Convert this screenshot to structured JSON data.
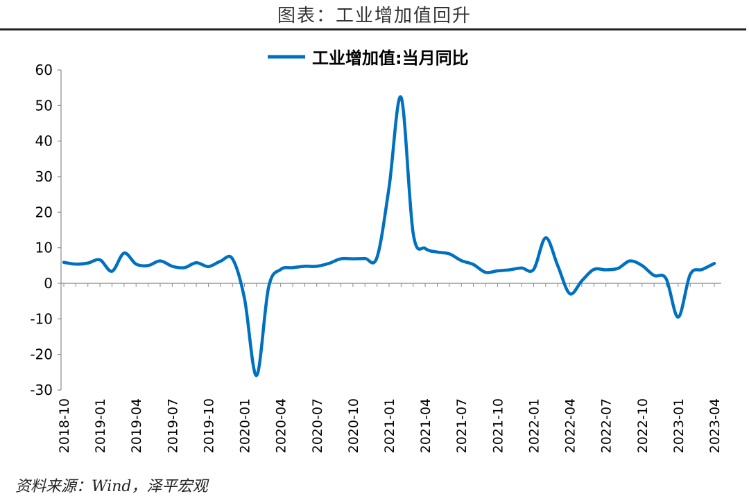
{
  "header": {
    "title": "图表：工业增加值回升"
  },
  "footer": {
    "source": "资料来源：Wind，泽平宏观"
  },
  "chart_data": {
    "type": "line",
    "title": "",
    "xlabel": "",
    "ylabel": "",
    "ylim": [
      -30,
      60
    ],
    "yticks": [
      -30,
      -20,
      -10,
      0,
      10,
      20,
      30,
      40,
      50,
      60
    ],
    "legend_position": "top-center",
    "grid": false,
    "line_color": "#0070C0",
    "x": [
      "2018-10",
      "2018-11",
      "2018-12",
      "2019-01",
      "2019-02",
      "2019-03",
      "2019-04",
      "2019-05",
      "2019-06",
      "2019-07",
      "2019-08",
      "2019-09",
      "2019-10",
      "2019-11",
      "2019-12",
      "2020-01",
      "2020-02",
      "2020-03",
      "2020-04",
      "2020-05",
      "2020-06",
      "2020-07",
      "2020-08",
      "2020-09",
      "2020-10",
      "2020-11",
      "2020-12",
      "2021-01",
      "2021-02",
      "2021-03",
      "2021-04",
      "2021-05",
      "2021-06",
      "2021-07",
      "2021-08",
      "2021-09",
      "2021-10",
      "2021-11",
      "2021-12",
      "2022-01",
      "2022-02",
      "2022-03",
      "2022-04",
      "2022-05",
      "2022-06",
      "2022-07",
      "2022-08",
      "2022-09",
      "2022-10",
      "2022-11",
      "2022-12",
      "2023-01",
      "2023-02",
      "2023-03",
      "2023-04"
    ],
    "xtick_labels": [
      "2018-10",
      "2019-01",
      "2019-04",
      "2019-07",
      "2019-10",
      "2020-01",
      "2020-04",
      "2020-07",
      "2020-10",
      "2021-01",
      "2021-04",
      "2021-07",
      "2021-10",
      "2022-01",
      "2022-04",
      "2022-07",
      "2022-10",
      "2023-01",
      "2023-04"
    ],
    "series": [
      {
        "name": "工业增加值:当月同比",
        "values": [
          5.9,
          5.4,
          5.7,
          6.6,
          3.4,
          8.5,
          5.4,
          5.0,
          6.3,
          4.8,
          4.4,
          5.8,
          4.7,
          6.2,
          6.9,
          -4.3,
          -25.9,
          -1.1,
          3.9,
          4.4,
          4.8,
          4.8,
          5.6,
          6.9,
          6.9,
          7.0,
          7.3,
          27.0,
          52.3,
          14.1,
          9.8,
          8.8,
          8.3,
          6.4,
          5.3,
          3.1,
          3.5,
          3.8,
          4.3,
          3.9,
          12.8,
          5.0,
          -2.9,
          0.7,
          3.9,
          3.8,
          4.2,
          6.3,
          5.0,
          2.2,
          1.3,
          -9.5,
          2.5,
          3.9,
          5.6
        ]
      }
    ]
  }
}
